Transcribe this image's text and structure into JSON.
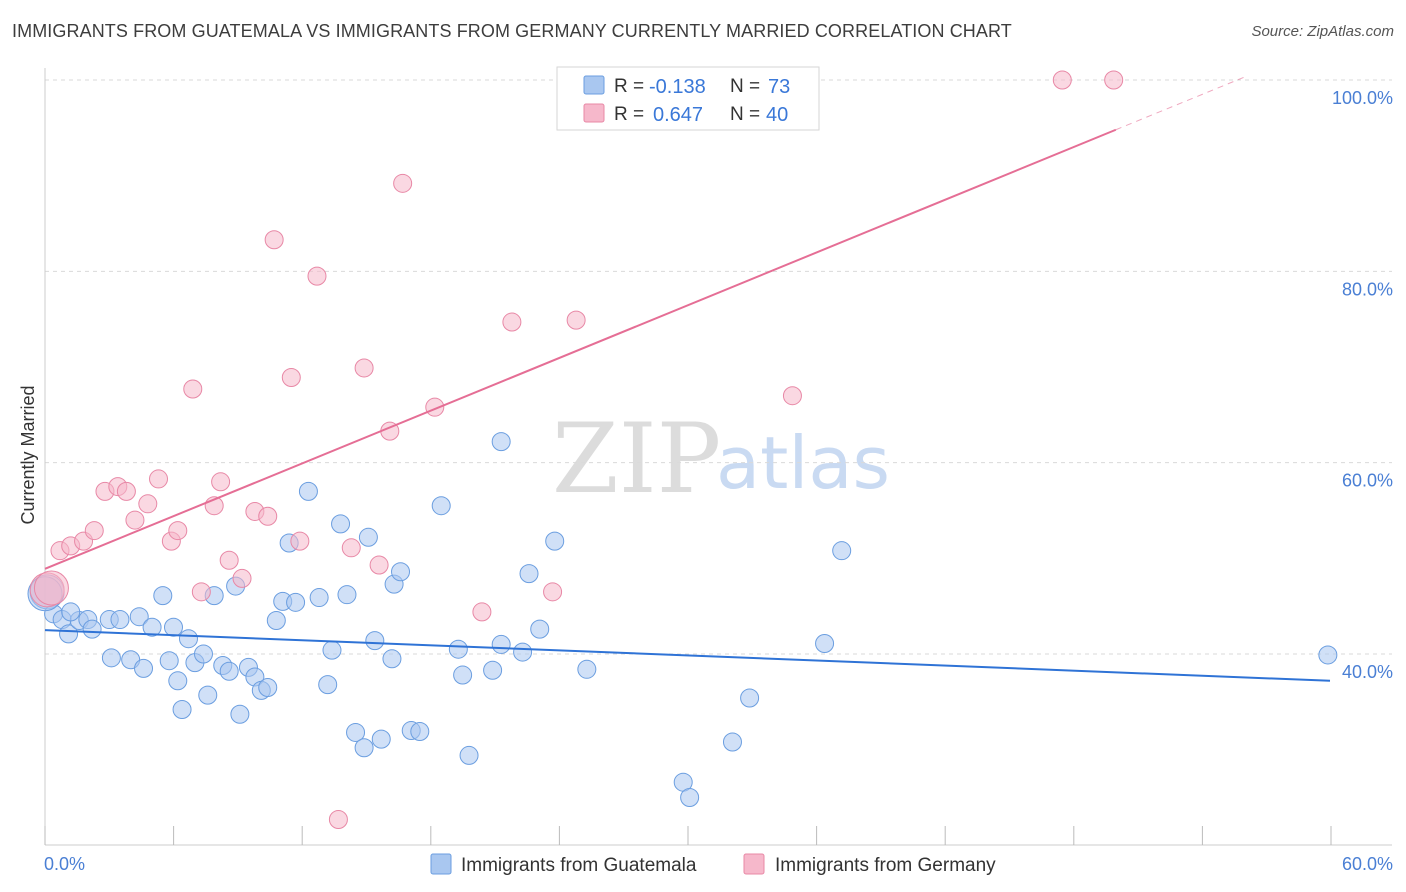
{
  "header": {
    "title": "IMMIGRANTS FROM GUATEMALA VS IMMIGRANTS FROM GERMANY CURRENTLY MARRIED CORRELATION CHART",
    "source": "Source: ZipAtlas.com"
  },
  "watermark": {
    "zip": "ZIP",
    "atlas": "atlas"
  },
  "stats_legend": {
    "rows": [
      {
        "r_label": "R =",
        "r_value": "-0.138",
        "n_label": "N =",
        "n_value": "73",
        "color": "#a9c7f0"
      },
      {
        "r_label": "R =",
        "r_value": "0.647",
        "n_label": "N =",
        "n_value": "40",
        "color": "#f6b8cb"
      }
    ]
  },
  "colors": {
    "guatemala_fill": "#a9c7f0",
    "guatemala_stroke": "#6b9ee0",
    "guatemala_line": "#2f73d6",
    "germany_fill": "#f6b8cb",
    "germany_stroke": "#e888a6",
    "germany_line": "#e56e95",
    "grid": "#d9d9d9",
    "tick_text": "#4a7fd4"
  },
  "chart_data": {
    "type": "scatter",
    "title": "IMMIGRANTS FROM GUATEMALA VS IMMIGRANTS FROM GERMANY CURRENTLY MARRIED CORRELATION CHART",
    "xlabel": "",
    "ylabel": "Currently Married",
    "xlim": [
      0,
      60
    ],
    "ylim": [
      20,
      102
    ],
    "x_tick_labels": [
      "0.0%",
      "60.0%"
    ],
    "y_ticks": [
      40,
      60,
      80,
      100
    ],
    "y_tick_labels": [
      "40.0%",
      "60.0%",
      "80.0%",
      "100.0%"
    ],
    "grid": true,
    "legend_position": "bottom",
    "series": [
      {
        "name": "Immigrants from Guatemala",
        "r": -0.138,
        "n": 73,
        "trend": {
          "x0": 0,
          "y0": 42.5,
          "x1": 60,
          "y1": 37.2
        },
        "points": [
          [
            0.1,
            46.5
          ],
          [
            0.4,
            44.2
          ],
          [
            0.8,
            43.6
          ],
          [
            1.1,
            42.1
          ],
          [
            1.6,
            43.5
          ],
          [
            2.0,
            43.6
          ],
          [
            2.2,
            42.6
          ],
          [
            3.0,
            43.6
          ],
          [
            3.5,
            43.6
          ],
          [
            4.4,
            43.9
          ],
          [
            5.0,
            42.8
          ],
          [
            5.5,
            46.1
          ],
          [
            6.0,
            42.8
          ],
          [
            3.1,
            39.6
          ],
          [
            4.0,
            39.4
          ],
          [
            4.6,
            38.5
          ],
          [
            5.8,
            39.3
          ],
          [
            6.2,
            37.2
          ],
          [
            6.4,
            34.2
          ],
          [
            6.7,
            41.6
          ],
          [
            7.0,
            39.1
          ],
          [
            7.4,
            40.0
          ],
          [
            7.6,
            35.7
          ],
          [
            7.9,
            46.1
          ],
          [
            8.3,
            38.8
          ],
          [
            8.6,
            38.2
          ],
          [
            8.9,
            47.1
          ],
          [
            9.1,
            33.7
          ],
          [
            9.5,
            38.6
          ],
          [
            9.8,
            37.6
          ],
          [
            10.1,
            36.2
          ],
          [
            10.4,
            36.5
          ],
          [
            10.8,
            43.5
          ],
          [
            11.1,
            45.5
          ],
          [
            11.4,
            51.6
          ],
          [
            11.7,
            45.4
          ],
          [
            12.3,
            57.0
          ],
          [
            12.8,
            45.9
          ],
          [
            13.2,
            36.8
          ],
          [
            13.4,
            40.4
          ],
          [
            13.8,
            53.6
          ],
          [
            14.1,
            46.2
          ],
          [
            14.5,
            31.8
          ],
          [
            14.9,
            30.2
          ],
          [
            15.1,
            52.2
          ],
          [
            15.4,
            41.4
          ],
          [
            15.7,
            31.1
          ],
          [
            16.3,
            47.3
          ],
          [
            16.6,
            48.6
          ],
          [
            16.2,
            39.5
          ],
          [
            17.1,
            32.0
          ],
          [
            17.5,
            31.9
          ],
          [
            18.5,
            55.5
          ],
          [
            19.3,
            40.5
          ],
          [
            19.5,
            37.8
          ],
          [
            19.8,
            29.4
          ],
          [
            20.9,
            38.3
          ],
          [
            21.3,
            41.0
          ],
          [
            21.3,
            62.2
          ],
          [
            22.3,
            40.2
          ],
          [
            22.6,
            48.4
          ],
          [
            23.1,
            42.6
          ],
          [
            23.8,
            51.8
          ],
          [
            25.3,
            38.4
          ],
          [
            29.8,
            26.6
          ],
          [
            30.1,
            25.0
          ],
          [
            32.1,
            30.8
          ],
          [
            32.9,
            35.4
          ],
          [
            36.4,
            41.1
          ],
          [
            37.2,
            50.8
          ],
          [
            59.9,
            39.9
          ],
          [
            0.0,
            46.3
          ],
          [
            1.2,
            44.4
          ]
        ]
      },
      {
        "name": "Immigrants from Germany",
        "r": 0.647,
        "n": 40,
        "trend": {
          "x0": 0,
          "y0": 48.9,
          "x1": 50,
          "y1": 94.8,
          "dash_to_x": 56,
          "dash_to_y": 100.3
        },
        "points": [
          [
            0.1,
            46.7
          ],
          [
            0.7,
            50.8
          ],
          [
            1.2,
            51.3
          ],
          [
            1.8,
            51.8
          ],
          [
            2.3,
            52.9
          ],
          [
            2.8,
            57.0
          ],
          [
            3.4,
            57.5
          ],
          [
            3.8,
            57.0
          ],
          [
            4.2,
            54.0
          ],
          [
            4.8,
            55.7
          ],
          [
            5.3,
            58.3
          ],
          [
            5.9,
            51.8
          ],
          [
            6.2,
            52.9
          ],
          [
            6.9,
            67.7
          ],
          [
            7.3,
            46.5
          ],
          [
            7.9,
            55.5
          ],
          [
            8.2,
            58.0
          ],
          [
            8.6,
            49.8
          ],
          [
            9.2,
            47.9
          ],
          [
            9.8,
            54.9
          ],
          [
            10.4,
            54.4
          ],
          [
            10.7,
            83.3
          ],
          [
            11.5,
            68.9
          ],
          [
            11.9,
            51.8
          ],
          [
            12.7,
            79.5
          ],
          [
            13.7,
            22.7
          ],
          [
            14.3,
            51.1
          ],
          [
            14.9,
            69.9
          ],
          [
            15.6,
            49.3
          ],
          [
            16.1,
            63.3
          ],
          [
            16.7,
            89.2
          ],
          [
            18.2,
            65.8
          ],
          [
            20.4,
            44.4
          ],
          [
            21.8,
            74.7
          ],
          [
            23.7,
            46.5
          ],
          [
            24.8,
            74.9
          ],
          [
            34.9,
            67.0
          ],
          [
            47.5,
            100.0
          ],
          [
            49.9,
            100.0
          ],
          [
            0.3,
            46.9
          ]
        ]
      }
    ]
  },
  "bottom_legend": [
    {
      "label": "Immigrants from Guatemala",
      "color": "#a9c7f0"
    },
    {
      "label": "Immigrants from Germany",
      "color": "#f6b8cb"
    }
  ]
}
